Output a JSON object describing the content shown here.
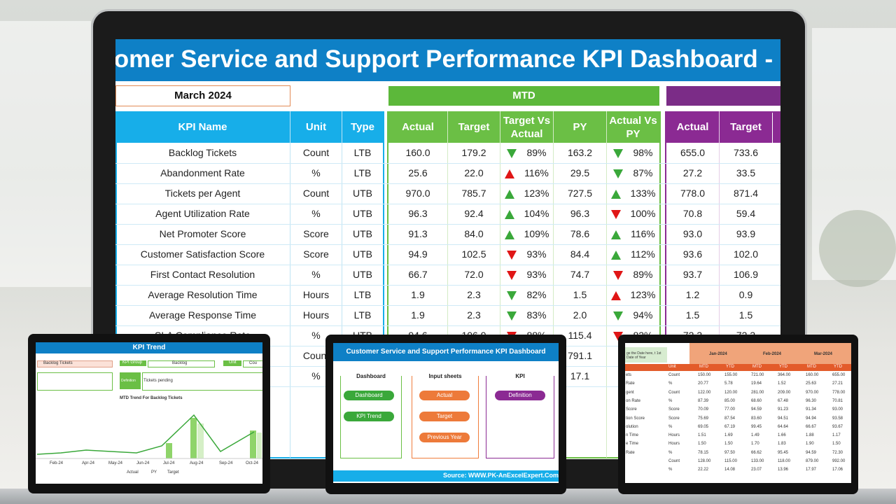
{
  "colors": {
    "title_blue": "#0e80c6",
    "header_blue": "#17aee9",
    "mtd_green": "#5cb83a",
    "ytd_purple": "#7b2c87",
    "up_arrow": "#3aa83a",
    "down_arrow": "#e01616"
  },
  "dashboard": {
    "title": "Customer Service and Support Performance KPI Dashboard - Report",
    "month": "March 2024",
    "mtd_label": "MTD",
    "headers": {
      "kpi_name": "KPI Name",
      "unit": "Unit",
      "type": "Type",
      "actual": "Actual",
      "target": "Target",
      "target_vs_actual": "Target Vs Actual",
      "py": "PY",
      "actual_vs_py": "Actual Vs PY",
      "ytd_actual": "Actual",
      "ytd_target": "Target"
    },
    "rows": [
      {
        "name": "Backlog Tickets",
        "unit": "Count",
        "type": "LTB",
        "actual": "160.0",
        "target": "179.2",
        "tva_icon": "down-green",
        "tva": "89%",
        "py": "163.2",
        "avp_icon": "down-green",
        "avp": "98%",
        "ytd_actual": "655.0",
        "ytd_target": "733.6"
      },
      {
        "name": "Abandonment Rate",
        "unit": "%",
        "type": "LTB",
        "actual": "25.6",
        "target": "22.0",
        "tva_icon": "up-red",
        "tva": "116%",
        "py": "29.5",
        "avp_icon": "down-green",
        "avp": "87%",
        "ytd_actual": "27.2",
        "ytd_target": "33.5"
      },
      {
        "name": "Tickets per Agent",
        "unit": "Count",
        "type": "UTB",
        "actual": "970.0",
        "target": "785.7",
        "tva_icon": "up-green",
        "tva": "123%",
        "py": "727.5",
        "avp_icon": "up-green",
        "avp": "133%",
        "ytd_actual": "778.0",
        "ytd_target": "871.4"
      },
      {
        "name": "Agent Utilization Rate",
        "unit": "%",
        "type": "UTB",
        "actual": "96.3",
        "target": "92.4",
        "tva_icon": "up-green",
        "tva": "104%",
        "py": "96.3",
        "avp_icon": "down-red",
        "avp": "100%",
        "ytd_actual": "70.8",
        "ytd_target": "59.4"
      },
      {
        "name": "Net Promoter Score",
        "unit": "Score",
        "type": "UTB",
        "actual": "91.3",
        "target": "84.0",
        "tva_icon": "up-green",
        "tva": "109%",
        "py": "78.6",
        "avp_icon": "up-green",
        "avp": "116%",
        "ytd_actual": "93.0",
        "ytd_target": "93.9"
      },
      {
        "name": "Customer Satisfaction Score",
        "unit": "Score",
        "type": "UTB",
        "actual": "94.9",
        "target": "102.5",
        "tva_icon": "down-red",
        "tva": "93%",
        "py": "84.4",
        "avp_icon": "up-green",
        "avp": "112%",
        "ytd_actual": "93.6",
        "ytd_target": "102.0"
      },
      {
        "name": "First Contact Resolution",
        "unit": "%",
        "type": "UTB",
        "actual": "66.7",
        "target": "72.0",
        "tva_icon": "down-red",
        "tva": "93%",
        "py": "74.7",
        "avp_icon": "down-red",
        "avp": "89%",
        "ytd_actual": "93.7",
        "ytd_target": "106.9"
      },
      {
        "name": "Average Resolution Time",
        "unit": "Hours",
        "type": "LTB",
        "actual": "1.9",
        "target": "2.3",
        "tva_icon": "down-green",
        "tva": "82%",
        "py": "1.5",
        "avp_icon": "up-red",
        "avp": "123%",
        "ytd_actual": "1.2",
        "ytd_target": "0.9"
      },
      {
        "name": "Average Response Time",
        "unit": "Hours",
        "type": "LTB",
        "actual": "1.9",
        "target": "2.3",
        "tva_icon": "down-green",
        "tva": "83%",
        "py": "2.0",
        "avp_icon": "down-green",
        "avp": "94%",
        "ytd_actual": "1.5",
        "ytd_target": "1.5"
      },
      {
        "name": "SLA Compliance Rate",
        "unit": "%",
        "type": "UTB",
        "actual": "94.6",
        "target": "106.9",
        "tva_icon": "down-red",
        "tva": "88%",
        "py": "115.4",
        "avp_icon": "down-red",
        "avp": "82%",
        "ytd_actual": "72.3",
        "ytd_target": "72.3"
      },
      {
        "name": "",
        "unit": "Count",
        "type": "",
        "actual": "",
        "target": "",
        "tva_icon": "",
        "tva": "",
        "py": "791.1",
        "avp_icon": "up-green",
        "avp": "",
        "ytd_actual": "",
        "ytd_target": ""
      },
      {
        "name": "",
        "unit": "%",
        "type": "",
        "actual": "",
        "target": "",
        "tva_icon": "",
        "tva": "",
        "py": "17.1",
        "avp_icon": "up-red",
        "avp": "",
        "ytd_actual": "",
        "ytd_target": ""
      }
    ]
  },
  "kpi_trend": {
    "title": "KPI Trend",
    "kpi_value": "Backlog Tickets",
    "kpi_group_label": "KPI Group",
    "kpi_group_value": "Backlog",
    "unit_label": "Unit",
    "unit_value": "Cou",
    "definition_label": "Definition",
    "definition_value": "Tickets pending",
    "chart_title": "MTD Trend For Backlog Tickets",
    "legend_actual": "Actual",
    "legend_py": "PY",
    "legend_target": "Target"
  },
  "chart_data": {
    "type": "bar",
    "title": "MTD Trend For Backlog Tickets",
    "categories": [
      "Feb-24",
      "Apr-24",
      "May-24",
      "Jun-24",
      "Jul-24",
      "Aug-24",
      "Sep-24",
      "Oct-24"
    ],
    "series": [
      {
        "name": "Actual",
        "values": [
          null,
          null,
          null,
          null,
          null,
          null,
          null,
          null
        ]
      },
      {
        "name": "PY",
        "values": [
          null,
          null,
          null,
          null,
          null,
          null,
          null,
          null
        ]
      },
      {
        "name": "Target",
        "values": [
          null,
          null,
          null,
          null,
          null,
          null,
          null,
          null
        ]
      }
    ]
  },
  "menu": {
    "title": "Customer Service and Support Performance KPI Dashboard",
    "groups": {
      "dashboard": "Dashboard",
      "input": "Input sheets",
      "kpi": "KPI"
    },
    "buttons": {
      "dashboard": "Dashboard",
      "kpi_trend": "KPI Trend",
      "actual": "Actual",
      "target": "Target",
      "previous_year": "Previous Year",
      "definition": "Definition"
    },
    "source": "Source: WWW.PK-AnExcelExpert.Com"
  },
  "data_sheet": {
    "note": "ge the Date here, t 1st Date of Year",
    "unit_header": "Unit",
    "months": [
      "Jan-2024",
      "Feb-2024",
      "Mar-2024"
    ],
    "subheaders": [
      "MTD",
      "YTD"
    ],
    "rows": [
      {
        "name": "ets",
        "unit": "Count",
        "v": [
          "150.00",
          "155.00",
          "721.00",
          "364.00",
          "160.00",
          "655.00"
        ]
      },
      {
        "name": "Rate",
        "unit": "%",
        "v": [
          "20.77",
          "5.78",
          "19.64",
          "1.52",
          "25.63",
          "27.21"
        ]
      },
      {
        "name": "gent",
        "unit": "Count",
        "v": [
          "122.00",
          "120.00",
          "281.00",
          "209.00",
          "970.00",
          "778.00"
        ]
      },
      {
        "name": "on Rate",
        "unit": "%",
        "v": [
          "87.39",
          "85.00",
          "68.60",
          "67.48",
          "96.30",
          "70.81"
        ]
      },
      {
        "name": "Score",
        "unit": "Score",
        "v": [
          "70.09",
          "77.00",
          "94.59",
          "91.23",
          "91.34",
          "93.00"
        ]
      },
      {
        "name": "tion Score",
        "unit": "Score",
        "v": [
          "75.69",
          "87.54",
          "83.60",
          "94.51",
          "94.94",
          "93.58"
        ]
      },
      {
        "name": "olution",
        "unit": "%",
        "v": [
          "69.05",
          "67.19",
          "99.45",
          "64.64",
          "66.67",
          "93.67"
        ]
      },
      {
        "name": "n Time",
        "unit": "Hours",
        "v": [
          "1.51",
          "1.69",
          "1.49",
          "1.66",
          "1.88",
          "1.17"
        ]
      },
      {
        "name": "e Time",
        "unit": "Hours",
        "v": [
          "1.50",
          "1.50",
          "1.70",
          "1.83",
          "1.90",
          "1.50"
        ]
      },
      {
        "name": "Rate",
        "unit": "%",
        "v": [
          "78.15",
          "97.50",
          "66.62",
          "95.45",
          "94.59",
          "72.30"
        ]
      },
      {
        "name": "",
        "unit": "Count",
        "v": [
          "128.00",
          "115.00",
          "133.00",
          "118.00",
          "879.00",
          "992.00"
        ]
      },
      {
        "name": "",
        "unit": "%",
        "v": [
          "22.22",
          "14.08",
          "23.07",
          "13.96",
          "17.97",
          "17.06"
        ]
      }
    ]
  }
}
